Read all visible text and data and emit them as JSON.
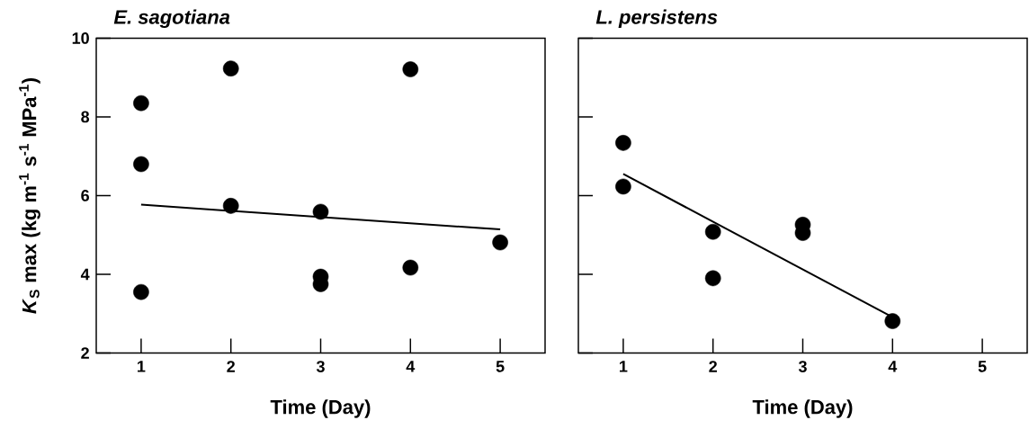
{
  "chart_data": [
    {
      "type": "scatter",
      "title": "E. sagotiana",
      "xlabel": "Time (Day)",
      "ylabel": "*K*$_{S}$ max (kg m$^{-1}$ s$^{-1}$ MPa$^{-1}$)",
      "xlim": [
        0.5,
        5.5
      ],
      "ylim": [
        2,
        10
      ],
      "xticks": [
        1,
        2,
        3,
        4,
        5
      ],
      "yticks": [
        2,
        4,
        6,
        8,
        10
      ],
      "series": [
        {
          "marker": "circle",
          "color": "#000000",
          "x": [
            1,
            1,
            1,
            2,
            2,
            3,
            3,
            3,
            4,
            4,
            5
          ],
          "values": [
            8.35,
            6.8,
            3.55,
            9.23,
            5.74,
            5.59,
            3.94,
            3.75,
            9.21,
            4.17,
            4.81
          ]
        },
        {
          "type": "line",
          "marker": "none",
          "color": "#000000",
          "x": [
            1,
            5
          ],
          "values": [
            5.77,
            5.14
          ]
        }
      ]
    },
    {
      "type": "scatter",
      "title": "L. persistens",
      "xlabel": "Time (Day)",
      "xlim": [
        0.5,
        5.5
      ],
      "ylim": [
        2,
        10
      ],
      "xticks": [
        1,
        2,
        3,
        4,
        5
      ],
      "yticks": [
        2,
        4,
        6,
        8,
        10
      ],
      "tick_labels": "x",
      "series": [
        {
          "marker": "circle",
          "color": "#000000",
          "x": [
            1,
            1,
            2,
            2,
            3,
            3,
            4
          ],
          "values": [
            7.34,
            6.23,
            5.08,
            3.9,
            5.26,
            5.05,
            2.81
          ]
        },
        {
          "type": "line",
          "marker": "none",
          "color": "#000000",
          "x": [
            1,
            4
          ],
          "values": [
            6.55,
            2.91
          ]
        }
      ]
    }
  ]
}
